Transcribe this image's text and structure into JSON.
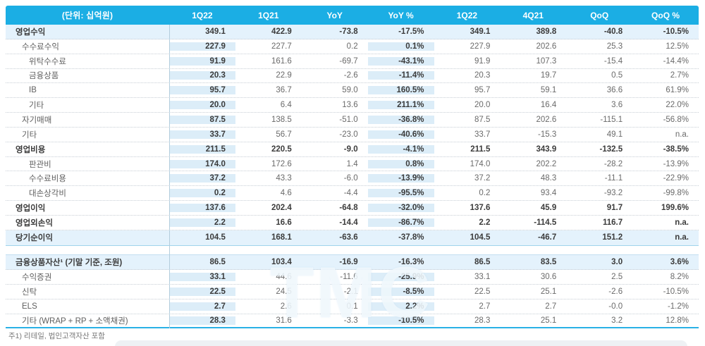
{
  "table": {
    "unit_label": "(단위: 십억원)",
    "columns": [
      "1Q22",
      "1Q21",
      "YoY",
      "YoY %",
      "1Q22",
      "4Q21",
      "QoQ",
      "QoQ %"
    ],
    "rows": [
      {
        "label": "영업수익",
        "level": 0,
        "bold": true,
        "highlight": true,
        "values": [
          "349.1",
          "422.9",
          "-73.8",
          "-17.5%",
          "349.1",
          "389.8",
          "-40.8",
          "-10.5%"
        ]
      },
      {
        "label": "수수료수익",
        "level": 1,
        "bold": false,
        "highlight": false,
        "values": [
          "227.9",
          "227.7",
          "0.2",
          "0.1%",
          "227.9",
          "202.6",
          "25.3",
          "12.5%"
        ]
      },
      {
        "label": "위탁수수료",
        "level": 2,
        "bold": false,
        "highlight": false,
        "values": [
          "91.9",
          "161.6",
          "-69.7",
          "-43.1%",
          "91.9",
          "107.3",
          "-15.4",
          "-14.4%"
        ]
      },
      {
        "label": "금융상품",
        "level": 2,
        "bold": false,
        "highlight": false,
        "values": [
          "20.3",
          "22.9",
          "-2.6",
          "-11.4%",
          "20.3",
          "19.7",
          "0.5",
          "2.7%"
        ]
      },
      {
        "label": "IB",
        "level": 2,
        "bold": false,
        "highlight": false,
        "values": [
          "95.7",
          "36.7",
          "59.0",
          "160.5%",
          "95.7",
          "59.1",
          "36.6",
          "61.9%"
        ]
      },
      {
        "label": "기타",
        "level": 2,
        "bold": false,
        "highlight": false,
        "values": [
          "20.0",
          "6.4",
          "13.6",
          "211.1%",
          "20.0",
          "16.4",
          "3.6",
          "22.0%"
        ]
      },
      {
        "label": "자기매매",
        "level": 1,
        "bold": false,
        "highlight": false,
        "values": [
          "87.5",
          "138.5",
          "-51.0",
          "-36.8%",
          "87.5",
          "202.6",
          "-115.1",
          "-56.8%"
        ]
      },
      {
        "label": "기타",
        "level": 1,
        "bold": false,
        "highlight": false,
        "values": [
          "33.7",
          "56.7",
          "-23.0",
          "-40.6%",
          "33.7",
          "-15.3",
          "49.1",
          "n.a."
        ]
      },
      {
        "label": "영업비용",
        "level": 0,
        "bold": true,
        "highlight": false,
        "values": [
          "211.5",
          "220.5",
          "-9.0",
          "-4.1%",
          "211.5",
          "343.9",
          "-132.5",
          "-38.5%"
        ]
      },
      {
        "label": "판관비",
        "level": 2,
        "bold": false,
        "highlight": false,
        "values": [
          "174.0",
          "172.6",
          "1.4",
          "0.8%",
          "174.0",
          "202.2",
          "-28.2",
          "-13.9%"
        ]
      },
      {
        "label": "수수료비용",
        "level": 2,
        "bold": false,
        "highlight": false,
        "values": [
          "37.2",
          "43.3",
          "-6.0",
          "-13.9%",
          "37.2",
          "48.3",
          "-11.1",
          "-22.9%"
        ]
      },
      {
        "label": "대손상각비",
        "level": 2,
        "bold": false,
        "highlight": false,
        "values": [
          "0.2",
          "4.6",
          "-4.4",
          "-95.5%",
          "0.2",
          "93.4",
          "-93.2",
          "-99.8%"
        ]
      },
      {
        "label": "영업이익",
        "level": 0,
        "bold": true,
        "highlight": false,
        "values": [
          "137.6",
          "202.4",
          "-64.8",
          "-32.0%",
          "137.6",
          "45.9",
          "91.7",
          "199.6%"
        ]
      },
      {
        "label": "영업외손익",
        "level": 0,
        "bold": true,
        "highlight": false,
        "values": [
          "2.2",
          "16.6",
          "-14.4",
          "-86.7%",
          "2.2",
          "-114.5",
          "116.7",
          "n.a."
        ]
      },
      {
        "label": "당기순이익",
        "level": 0,
        "bold": true,
        "highlight": true,
        "nobottom": true,
        "values": [
          "104.5",
          "168.1",
          "-63.6",
          "-37.8%",
          "104.5",
          "-46.7",
          "151.2",
          "n.a."
        ]
      },
      {
        "spacer": true
      },
      {
        "label": "금융상품자산¹ (기말 기준, 조원)",
        "level": 0,
        "bold": true,
        "highlight": true,
        "values": [
          "86.5",
          "103.4",
          "-16.9",
          "-16.3%",
          "86.5",
          "83.5",
          "3.0",
          "3.6%"
        ]
      },
      {
        "label": "수익증권",
        "level": 1,
        "bold": false,
        "highlight": false,
        "values": [
          "33.1",
          "44.6",
          "-11.6",
          "-25.9%",
          "33.1",
          "30.6",
          "2.5",
          "8.2%"
        ]
      },
      {
        "label": "신탁",
        "level": 1,
        "bold": false,
        "highlight": false,
        "values": [
          "22.5",
          "24.5",
          "-2.1",
          "-8.5%",
          "22.5",
          "25.1",
          "-2.6",
          "-10.5%"
        ]
      },
      {
        "label": "ELS",
        "level": 1,
        "bold": false,
        "highlight": false,
        "values": [
          "2.7",
          "2.6",
          "0.1",
          "2.2%",
          "2.7",
          "2.7",
          "-0.0",
          "-1.2%"
        ]
      },
      {
        "label": "기타 (WRAP + RP + 소액채권)",
        "level": 1,
        "bold": false,
        "highlight": false,
        "last": true,
        "values": [
          "28.3",
          "31.6",
          "-3.3",
          "-10.5%",
          "28.3",
          "25.1",
          "3.2",
          "12.8%"
        ]
      }
    ]
  },
  "footnote": "주1) 리테일, 법인고객자산 포함",
  "watermark": {
    "text": "TMC"
  },
  "colors": {
    "header_bg": "#1baee4",
    "header_text": "#ffffff",
    "column_band": "#dcedf8",
    "highlight_row": "#e4f2fc",
    "bottom_rule": "#2ab1e6",
    "text_regular": "#6a6a6a",
    "text_bold": "#3b3b3b"
  }
}
